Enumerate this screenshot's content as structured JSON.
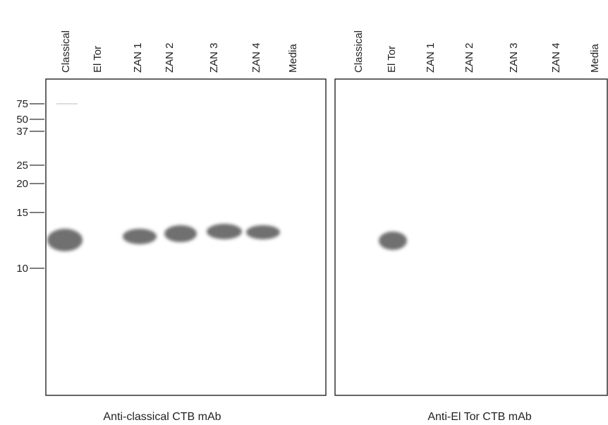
{
  "panels": [
    {
      "lanes": [
        "Classical",
        "El Tor",
        "ZAN 1",
        "ZAN 2",
        "ZAN 3",
        "ZAN 4",
        "Media"
      ],
      "caption": "Anti-classical CTB mAb"
    },
    {
      "lanes": [
        "Classical",
        "El Tor",
        "ZAN 1",
        "ZAN 2",
        "ZAN 3",
        "ZAN 4",
        "Media"
      ],
      "caption": "Anti-El Tor CTB mAb"
    }
  ],
  "markers": [
    "75",
    "50",
    "37",
    "25",
    "20",
    "15",
    "10"
  ]
}
